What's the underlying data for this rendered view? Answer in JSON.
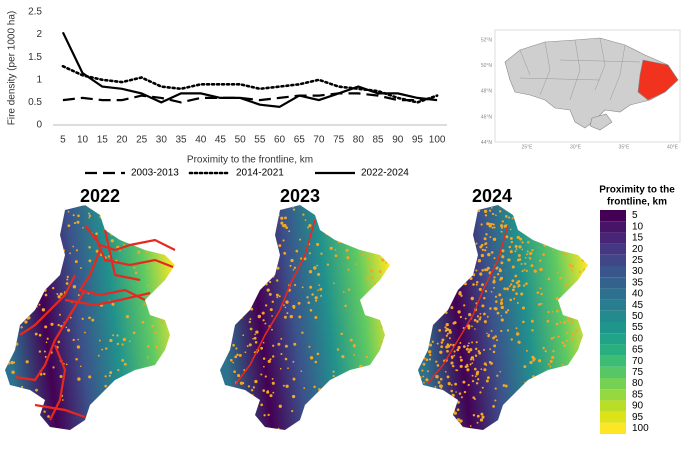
{
  "chart_data": {
    "type": "line",
    "x_label": "Proximity to the frontline, km",
    "y_label": "Fire density (per 1000 ha)",
    "categories": [
      "5",
      "10",
      "15",
      "20",
      "25",
      "30",
      "35",
      "40",
      "45",
      "50",
      "55",
      "60",
      "65",
      "70",
      "75",
      "80",
      "85",
      "90",
      "95",
      "100"
    ],
    "series": [
      {
        "name": "2003-2013",
        "color": "#000000",
        "style": "dashed",
        "values": [
          0.55,
          0.6,
          0.55,
          0.55,
          0.65,
          0.6,
          0.5,
          0.6,
          0.6,
          0.6,
          0.55,
          0.6,
          0.65,
          0.65,
          0.7,
          0.7,
          0.65,
          0.55,
          0.55,
          0.6
        ]
      },
      {
        "name": "2014-2021",
        "color": "#000000",
        "style": "dotted",
        "values": [
          1.3,
          1.1,
          1.0,
          0.95,
          1.05,
          0.85,
          0.8,
          0.9,
          0.9,
          0.9,
          0.8,
          0.85,
          0.9,
          1.0,
          0.85,
          0.8,
          0.75,
          0.6,
          0.5,
          0.65
        ]
      },
      {
        "name": "2022-2024",
        "color": "#000000",
        "style": "solid",
        "values": [
          2.05,
          1.15,
          0.85,
          0.8,
          0.7,
          0.5,
          0.7,
          0.7,
          0.6,
          0.6,
          0.45,
          0.4,
          0.65,
          0.55,
          0.7,
          0.85,
          0.7,
          0.7,
          0.6,
          0.55
        ]
      }
    ],
    "ylim": [
      0,
      2.5
    ],
    "yticks": [
      0,
      0.5,
      1,
      1.5,
      2,
      2.5
    ],
    "grid": false,
    "legend": "bottom"
  },
  "inset_map": {
    "latitudes": [
      "52°N",
      "50°N",
      "48°N",
      "46°N",
      "44°N"
    ],
    "longitudes": [
      "25°E",
      "30°E",
      "35°E",
      "40°E"
    ]
  },
  "maps": {
    "titles": [
      "2022",
      "2023",
      "2024"
    ],
    "legend": {
      "title_lines": [
        "Proximity to the",
        "frontline, km"
      ],
      "labels": [
        5,
        10,
        15,
        20,
        25,
        30,
        35,
        40,
        45,
        50,
        55,
        60,
        65,
        70,
        75,
        80,
        85,
        90,
        95,
        100
      ],
      "colors": [
        "#440154",
        "#481467",
        "#482576",
        "#453781",
        "#404688",
        "#39558c",
        "#33638d",
        "#2d718e",
        "#287d8e",
        "#238a8d",
        "#1f968b",
        "#20a386",
        "#29af7f",
        "#3dbc74",
        "#56c667",
        "#75d054",
        "#95d840",
        "#bade28",
        "#dde318",
        "#fde725"
      ]
    }
  }
}
